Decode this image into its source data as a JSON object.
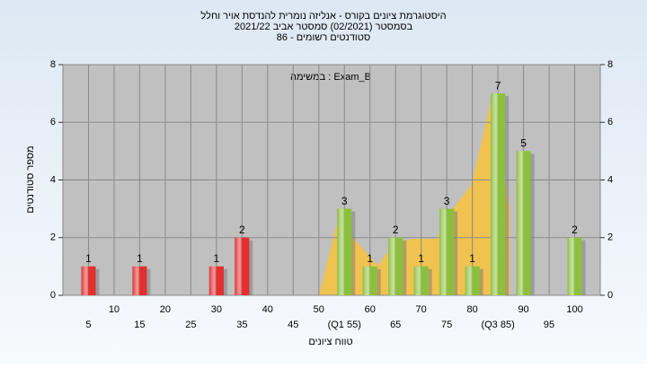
{
  "chart_data": {
    "type": "bar",
    "title": [
      "היסטוגרמת ציונים בקורס - אנליזה נומרית להנדסת אויר וחלל",
      "בסמסטר  (02/2021)  סמסטר אביב 2021/22",
      "סטודנטים רשומים - 86"
    ],
    "annotation": "במשימה : Exam_B",
    "x_label": "טווח ציונים",
    "y_label": "מספר סטודנטים",
    "x": [
      5,
      15,
      30,
      35,
      55,
      60,
      65,
      70,
      75,
      80,
      85,
      90,
      100
    ],
    "values": [
      1,
      1,
      1,
      2,
      3,
      1,
      2,
      1,
      3,
      1,
      7,
      5,
      2
    ],
    "colors": [
      "#e03030",
      "#e03030",
      "#e03030",
      "#e03030",
      "#8cbf3f",
      "#8cbf3f",
      "#8cbf3f",
      "#8cbf3f",
      "#8cbf3f",
      "#8cbf3f",
      "#8cbf3f",
      "#8cbf3f",
      "#8cbf3f"
    ],
    "xlim": [
      0,
      105
    ],
    "xticks": [
      5,
      10,
      15,
      20,
      25,
      30,
      35,
      40,
      45,
      50,
      {
        "value": 55,
        "label": "(Q1 55)"
      },
      60,
      65,
      70,
      75,
      80,
      {
        "value": 85,
        "label": "(Q3 85)"
      },
      90,
      95,
      100
    ],
    "ylim": [
      0,
      8
    ],
    "yticks": [
      0,
      2,
      4,
      6,
      8
    ],
    "y2lim": [
      0,
      8
    ],
    "y2ticks": [
      0,
      2,
      4,
      6,
      8
    ],
    "grid": true
  }
}
